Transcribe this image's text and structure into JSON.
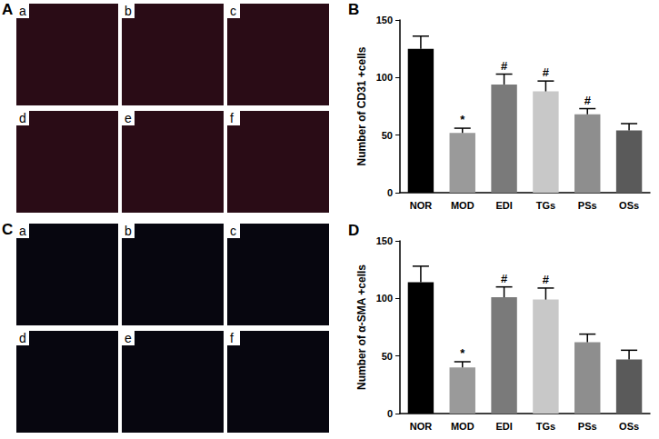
{
  "panels": [
    {
      "label": "A",
      "sub_labels": [
        "a",
        "b",
        "c",
        "d",
        "e",
        "f"
      ],
      "color": "#2a0c16"
    },
    {
      "label": "C",
      "sub_labels": [
        "a",
        "b",
        "c",
        "d",
        "e",
        "f"
      ],
      "color": "#07060f"
    }
  ],
  "chart_data": [
    {
      "type": "bar",
      "panel_label": "B",
      "y_label": "Number of CD31 +cells",
      "categories": [
        "NOR",
        "MOD",
        "EDI",
        "TGs",
        "PSs",
        "OSs"
      ],
      "values": [
        125,
        52,
        94,
        88,
        68,
        54
      ],
      "errors": [
        11,
        4,
        9,
        9,
        5,
        6
      ],
      "annotations": [
        null,
        "*",
        "#",
        "#",
        "#",
        null
      ],
      "colors": [
        "#000000",
        "#9a9a9a",
        "#7a7a7a",
        "#c8c8c8",
        "#8e8e8e",
        "#5a5a5a"
      ],
      "ylim": [
        0,
        150
      ],
      "yticks": [
        0,
        50,
        100,
        150
      ],
      "grid": false
    },
    {
      "type": "bar",
      "panel_label": "D",
      "y_label": "Number of α-SMA +cells",
      "categories": [
        "NOR",
        "MOD",
        "EDI",
        "TGs",
        "PSs",
        "OSs"
      ],
      "values": [
        114,
        40,
        101,
        99,
        62,
        47
      ],
      "errors": [
        14,
        5,
        9,
        10,
        7,
        8
      ],
      "annotations": [
        null,
        "*",
        "#",
        "#",
        null,
        null
      ],
      "colors": [
        "#000000",
        "#9a9a9a",
        "#7a7a7a",
        "#c8c8c8",
        "#8e8e8e",
        "#5a5a5a"
      ],
      "ylim": [
        0,
        150
      ],
      "yticks": [
        0,
        50,
        100,
        150
      ],
      "grid": false
    }
  ]
}
